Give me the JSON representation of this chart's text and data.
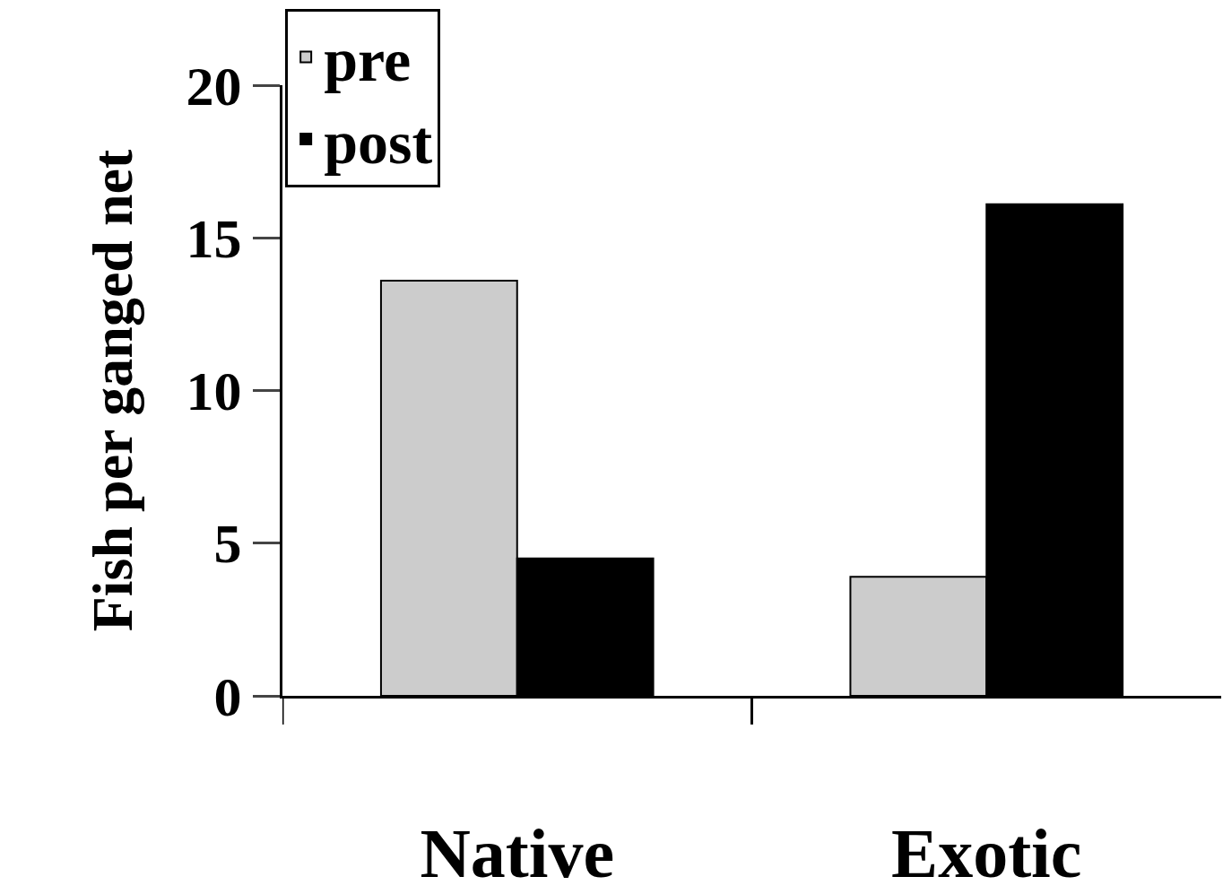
{
  "chart_data": {
    "type": "bar",
    "ylabel": "Fish per ganged net",
    "categories": [
      "Native",
      "Exotic"
    ],
    "series": [
      {
        "name": "pre",
        "color": "#cccccc",
        "values": [
          13.6,
          3.9
        ]
      },
      {
        "name": "post",
        "color": "#000000",
        "values": [
          4.5,
          16.1
        ]
      }
    ],
    "ylim": [
      0,
      20
    ],
    "yticks": [
      0,
      5,
      10,
      15,
      20
    ],
    "legend": "top left"
  }
}
